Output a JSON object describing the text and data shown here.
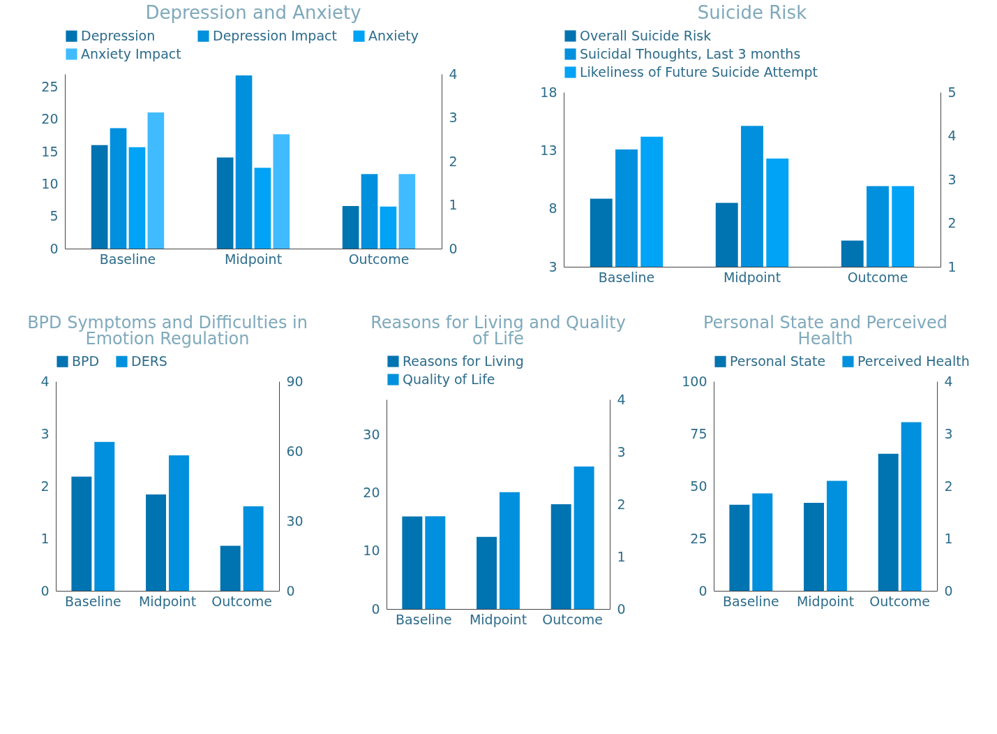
{
  "chart_data": [
    {
      "type": "bar",
      "title": "Depression and Anxiety",
      "categories": [
        "Baseline",
        "Midpoint",
        "Outcome"
      ],
      "legend": "top",
      "ylim": [
        0,
        27
      ],
      "yticks": [
        0,
        5,
        10,
        15,
        20,
        25
      ],
      "y2lim": [
        0,
        4
      ],
      "y2ticks": [
        0,
        1,
        2,
        3,
        4
      ],
      "series": [
        {
          "name": "Depression",
          "color": "#0073b1",
          "values": [
            16.0,
            14.1,
            6.6
          ]
        },
        {
          "name": "Depression Impact",
          "color": "#0090dd",
          "axis": "y2",
          "values": [
            2.76,
            3.97,
            1.71
          ]
        },
        {
          "name": "Anxiety",
          "color": "#00a3f5",
          "values": [
            15.7,
            12.5,
            6.5
          ]
        },
        {
          "name": "Anxiety Impact",
          "color": "#40bbff",
          "axis": "y2",
          "values": [
            3.12,
            2.62,
            1.71
          ]
        }
      ]
    },
    {
      "type": "bar",
      "title": "Suicide Risk",
      "categories": [
        "Baseline",
        "Midpoint",
        "Outcome"
      ],
      "legend": "top",
      "ylim": [
        3,
        18
      ],
      "yticks": [
        3,
        8,
        13,
        18
      ],
      "y2lim": [
        1,
        5
      ],
      "y2ticks": [
        1,
        2,
        3,
        4,
        5
      ],
      "series": [
        {
          "name": "Overall Suicide Risk",
          "color": "#0073b1",
          "values": [
            8.85,
            8.49,
            5.25
          ]
        },
        {
          "name": "Suicidal Thoughts, Last 3 months",
          "color": "#0090dd",
          "axis": "y2",
          "values": [
            3.69,
            4.23,
            2.85
          ]
        },
        {
          "name": "Likeliness of Future Suicide Attempt",
          "color": "#00a3f5",
          "axis": "y2",
          "values": [
            3.98,
            3.48,
            2.85
          ]
        }
      ]
    },
    {
      "type": "bar",
      "title": "BPD Symptoms and Difficulties in Emotion Regulation",
      "categories": [
        "Baseline",
        "Midpoint",
        "Outcome"
      ],
      "legend": "top",
      "ylim": [
        0,
        4
      ],
      "yticks": [
        0,
        1,
        2,
        3,
        4
      ],
      "y2lim": [
        0,
        90
      ],
      "y2ticks": [
        0,
        30,
        60,
        90
      ],
      "series": [
        {
          "name": "BPD",
          "color": "#0073b1",
          "values": [
            2.18,
            1.84,
            0.86
          ]
        },
        {
          "name": "DERS",
          "color": "#0090dd",
          "axis": "y2",
          "values": [
            64.0,
            58.2,
            36.3
          ]
        }
      ]
    },
    {
      "type": "bar",
      "title": "Reasons for Living and Quality of Life",
      "categories": [
        "Baseline",
        "Midpoint",
        "Outcome"
      ],
      "legend": "top",
      "ylim": [
        0,
        36
      ],
      "yticks": [
        0,
        10,
        20,
        30
      ],
      "y2lim": [
        0,
        4
      ],
      "y2ticks": [
        0,
        1,
        2,
        3,
        4
      ],
      "series": [
        {
          "name": "Reasons for Living",
          "color": "#0073b1",
          "values": [
            15.9,
            12.4,
            18.0
          ]
        },
        {
          "name": "Quality of Life",
          "color": "#0090dd",
          "axis": "y2",
          "values": [
            1.77,
            2.23,
            2.72
          ]
        }
      ]
    },
    {
      "type": "bar",
      "title": "Personal State and Perceived Health",
      "categories": [
        "Baseline",
        "Midpoint",
        "Outcome"
      ],
      "legend": "top",
      "ylim": [
        0,
        100
      ],
      "yticks": [
        0,
        25,
        50,
        75,
        100
      ],
      "y2lim": [
        0,
        4
      ],
      "y2ticks": [
        0,
        1,
        2,
        3,
        4
      ],
      "series": [
        {
          "name": "Personal State",
          "color": "#0073b1",
          "values": [
            41.1,
            42.0,
            65.4
          ]
        },
        {
          "name": "Perceived Health",
          "color": "#0090dd",
          "axis": "y2",
          "values": [
            1.86,
            2.1,
            3.22
          ]
        }
      ]
    }
  ]
}
